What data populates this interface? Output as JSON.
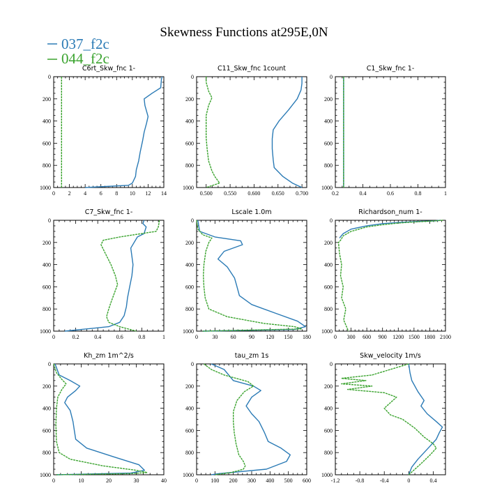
{
  "title": "Skewness Functions at295E,0N",
  "legend": [
    {
      "label": "037_f2c",
      "color": "#2a7ab5"
    },
    {
      "label": "044_f2c",
      "color": "#3aa32e"
    }
  ],
  "chart_data": [
    {
      "type": "line",
      "title": "C6rt_Skw_fnc   1-",
      "xlim": [
        0,
        14
      ],
      "ylim": [
        1000,
        0
      ],
      "xticks": [
        0,
        2,
        4,
        6,
        8,
        10,
        12,
        14
      ],
      "yticks": [
        0,
        200,
        400,
        600,
        800,
        1000
      ],
      "series": [
        {
          "name": "037_f2c",
          "color": "#2a7ab5",
          "dashed": false,
          "x": [
            13.8,
            13.7,
            13.6,
            12.5,
            11.5,
            11.6,
            12.0,
            11.8,
            11.5,
            11.3,
            11.0,
            10.8,
            10.5,
            10.4,
            10.0,
            9.5,
            4.0
          ],
          "y": [
            0,
            20,
            100,
            150,
            200,
            260,
            360,
            420,
            500,
            580,
            680,
            760,
            840,
            900,
            960,
            980,
            1000
          ]
        },
        {
          "name": "044_f2c",
          "color": "#3aa32e",
          "dashed": true,
          "x": [
            1.0,
            1.0,
            1.0
          ],
          "y": [
            0,
            500,
            1000
          ]
        }
      ]
    },
    {
      "type": "line",
      "title": "C11_Skw_fnc   1count",
      "xlim": [
        0.48,
        0.71
      ],
      "ylim": [
        1000,
        0
      ],
      "xticks": [
        0.5,
        0.55,
        0.6,
        0.65,
        0.7
      ],
      "xticklabels": [
        "0.500",
        "0.550",
        "0.600",
        "0.650",
        "0.700"
      ],
      "yticks": [
        0,
        200,
        400,
        600,
        800,
        1000
      ],
      "series": [
        {
          "name": "037_f2c",
          "color": "#2a7ab5",
          "dashed": false,
          "x": [
            0.7,
            0.7,
            0.698,
            0.69,
            0.672,
            0.652,
            0.64,
            0.638,
            0.638,
            0.64,
            0.642,
            0.66,
            0.68,
            0.7
          ],
          "y": [
            0,
            60,
            120,
            200,
            300,
            400,
            480,
            560,
            650,
            750,
            820,
            900,
            960,
            1000
          ]
        },
        {
          "name": "044_f2c",
          "color": "#3aa32e",
          "dashed": true,
          "x": [
            0.5,
            0.5,
            0.505,
            0.512,
            0.505,
            0.5,
            0.5,
            0.5,
            0.502,
            0.505,
            0.512,
            0.518,
            0.528,
            0.5
          ],
          "y": [
            0,
            50,
            130,
            190,
            260,
            350,
            450,
            550,
            650,
            760,
            850,
            900,
            960,
            1000
          ]
        }
      ]
    },
    {
      "type": "line",
      "title": "C1_Skw_fnc   1-",
      "xlim": [
        0.2,
        1.0
      ],
      "ylim": [
        1000,
        0
      ],
      "xticks": [
        0.2,
        0.4,
        0.6,
        0.8,
        1.0
      ],
      "yticks": [
        0,
        200,
        400,
        600,
        800,
        1000
      ],
      "series": [
        {
          "name": "037_f2c",
          "color": "#2a7ab5",
          "dashed": false,
          "x": [
            0.26,
            0.26,
            0.26
          ],
          "y": [
            0,
            500,
            1000
          ]
        },
        {
          "name": "044_f2c",
          "color": "#3aa32e",
          "dashed": true,
          "x": [
            0.26,
            0.26,
            0.26
          ],
          "y": [
            0,
            500,
            1000
          ]
        }
      ]
    },
    {
      "type": "line",
      "title": "C7_Skw_fnc   1-",
      "xlim": [
        0.0,
        1.0
      ],
      "ylim": [
        1000,
        0
      ],
      "xticks": [
        0.0,
        0.2,
        0.4,
        0.6,
        0.8,
        1.0
      ],
      "yticks": [
        0,
        200,
        400,
        600,
        800,
        1000
      ],
      "series": [
        {
          "name": "037_f2c",
          "color": "#2a7ab5",
          "dashed": false,
          "x": [
            0.82,
            0.81,
            0.84,
            0.82,
            0.76,
            0.7,
            0.72,
            0.71,
            0.69,
            0.67,
            0.66,
            0.64,
            0.6,
            0.5,
            0.1
          ],
          "y": [
            0,
            30,
            60,
            120,
            150,
            250,
            400,
            500,
            600,
            700,
            780,
            860,
            920,
            960,
            1000
          ]
        },
        {
          "name": "044_f2c",
          "color": "#3aa32e",
          "dashed": true,
          "x": [
            0.96,
            0.95,
            0.93,
            0.6,
            0.45,
            0.43,
            0.48,
            0.52,
            0.56,
            0.58,
            0.55,
            0.52,
            0.5,
            0.48,
            0.5,
            0.6,
            0.75
          ],
          "y": [
            0,
            60,
            100,
            150,
            180,
            220,
            320,
            400,
            500,
            580,
            660,
            740,
            800,
            870,
            920,
            960,
            1000
          ]
        }
      ]
    },
    {
      "type": "line",
      "title": "Lscale   1.0m",
      "xlim": [
        0,
        180
      ],
      "ylim": [
        1000,
        0
      ],
      "xticks": [
        0,
        30,
        60,
        90,
        120,
        150,
        180
      ],
      "yticks": [
        0,
        200,
        400,
        600,
        800,
        1000
      ],
      "series": [
        {
          "name": "037_f2c",
          "color": "#2a7ab5",
          "dashed": false,
          "x": [
            2,
            5,
            30,
            72,
            75,
            45,
            35,
            50,
            62,
            65,
            70,
            90,
            130,
            165,
            178,
            160,
            10
          ],
          "y": [
            0,
            100,
            150,
            185,
            220,
            280,
            350,
            420,
            520,
            580,
            680,
            760,
            840,
            910,
            960,
            985,
            1000
          ]
        },
        {
          "name": "044_f2c",
          "color": "#3aa32e",
          "dashed": true,
          "x": [
            0,
            2,
            10,
            25,
            20,
            15,
            12,
            11,
            12,
            14,
            20,
            50,
            110,
            160,
            172,
            10
          ],
          "y": [
            0,
            80,
            130,
            160,
            200,
            280,
            400,
            500,
            600,
            700,
            800,
            870,
            930,
            960,
            980,
            1000
          ]
        }
      ]
    },
    {
      "type": "line",
      "title": "Richardson_num   1-",
      "xlim": [
        0,
        2100
      ],
      "ylim": [
        1000,
        0
      ],
      "xticks": [
        0,
        300,
        600,
        900,
        1200,
        1500,
        1800,
        2100
      ],
      "yticks": [
        0,
        200,
        400,
        600,
        800,
        1000
      ],
      "series": [
        {
          "name": "037_f2c",
          "color": "#2a7ab5",
          "dashed": false,
          "x": [
            2000,
            1900,
            1600,
            1200,
            900,
            600,
            300,
            150,
            80
          ],
          "y": [
            0,
            5,
            10,
            20,
            30,
            50,
            80,
            120,
            160
          ]
        },
        {
          "name": "044_f2c",
          "color": "#3aa32e",
          "dashed": true,
          "x": [
            2050,
            1800,
            1500,
            1200,
            900,
            600,
            300,
            150,
            100,
            60,
            80,
            120,
            100,
            150,
            120,
            200,
            160,
            250
          ],
          "y": [
            0,
            8,
            15,
            25,
            40,
            60,
            100,
            140,
            180,
            200,
            300,
            400,
            500,
            600,
            700,
            800,
            900,
            1000
          ]
        }
      ]
    },
    {
      "type": "line",
      "title": "Kh_zm   1m^2/s",
      "xlim": [
        0,
        40
      ],
      "ylim": [
        1000,
        0
      ],
      "xticks": [
        0,
        10,
        20,
        30,
        40
      ],
      "yticks": [
        0,
        200,
        400,
        600,
        800,
        1000
      ],
      "series": [
        {
          "name": "037_f2c",
          "color": "#2a7ab5",
          "dashed": false,
          "x": [
            0.5,
            2,
            6,
            9.5,
            8,
            5,
            4,
            6,
            7,
            7.5,
            8,
            12,
            22,
            31,
            33,
            28,
            1
          ],
          "y": [
            0,
            100,
            150,
            200,
            240,
            300,
            350,
            420,
            520,
            600,
            680,
            760,
            840,
            910,
            960,
            985,
            1000
          ]
        },
        {
          "name": "044_f2c",
          "color": "#3aa32e",
          "dashed": true,
          "x": [
            0,
            1,
            3,
            4.5,
            3,
            1.5,
            1,
            0.8,
            1,
            2,
            6,
            18,
            30,
            34,
            28,
            1
          ],
          "y": [
            0,
            80,
            140,
            180,
            230,
            300,
            400,
            550,
            700,
            800,
            860,
            920,
            960,
            980,
            990,
            1000
          ]
        }
      ]
    },
    {
      "type": "line",
      "title": "tau_zm   1s",
      "xlim": [
        0,
        600
      ],
      "ylim": [
        1000,
        0
      ],
      "xticks": [
        0,
        100,
        200,
        300,
        400,
        500,
        600
      ],
      "yticks": [
        0,
        200,
        400,
        600,
        800,
        1000
      ],
      "series": [
        {
          "name": "037_f2c",
          "color": "#2a7ab5",
          "dashed": false,
          "x": [
            80,
            150,
            200,
            310,
            350,
            300,
            270,
            300,
            340,
            370,
            390,
            460,
            510,
            490,
            380,
            120,
            80
          ],
          "y": [
            0,
            50,
            150,
            200,
            240,
            300,
            380,
            450,
            520,
            620,
            700,
            760,
            820,
            880,
            950,
            990,
            1000
          ]
        },
        {
          "name": "044_f2c",
          "color": "#3aa32e",
          "dashed": true,
          "x": [
            40,
            80,
            150,
            280,
            310,
            260,
            220,
            200,
            200,
            205,
            215,
            230,
            255,
            265,
            255,
            190,
            100
          ],
          "y": [
            0,
            50,
            100,
            160,
            200,
            250,
            330,
            430,
            520,
            620,
            720,
            820,
            880,
            920,
            950,
            980,
            1000
          ]
        }
      ]
    },
    {
      "type": "line",
      "title": "Skw_velocity   1m/s",
      "xlim": [
        -1.2,
        0.6
      ],
      "ylim": [
        1000,
        0
      ],
      "xticks": [
        -1.2,
        -0.8,
        -0.4,
        0.0,
        0.4
      ],
      "yticks": [
        0,
        200,
        400,
        600,
        800,
        1000
      ],
      "series": [
        {
          "name": "037_f2c",
          "color": "#2a7ab5",
          "dashed": false,
          "x": [
            0.0,
            0.02,
            0.05,
            0.15,
            0.25,
            0.2,
            0.3,
            0.45,
            0.55,
            0.5,
            0.45,
            0.35,
            0.25,
            0.15,
            0.05,
            0.0
          ],
          "y": [
            0,
            80,
            150,
            250,
            330,
            380,
            450,
            520,
            570,
            620,
            680,
            740,
            800,
            860,
            930,
            1000
          ]
        },
        {
          "name": "044_f2c",
          "color": "#3aa32e",
          "dashed": true,
          "x": [
            0.0,
            -0.6,
            -1.1,
            -0.7,
            -1.1,
            -0.6,
            -1.0,
            -0.4,
            -0.2,
            -0.4,
            -0.3,
            -0.1,
            0.1,
            0.25,
            0.4,
            0.45,
            0.35,
            0.2,
            0.0
          ],
          "y": [
            0,
            100,
            130,
            150,
            180,
            200,
            230,
            260,
            300,
            400,
            460,
            500,
            580,
            660,
            720,
            760,
            820,
            900,
            1000
          ]
        }
      ]
    }
  ]
}
